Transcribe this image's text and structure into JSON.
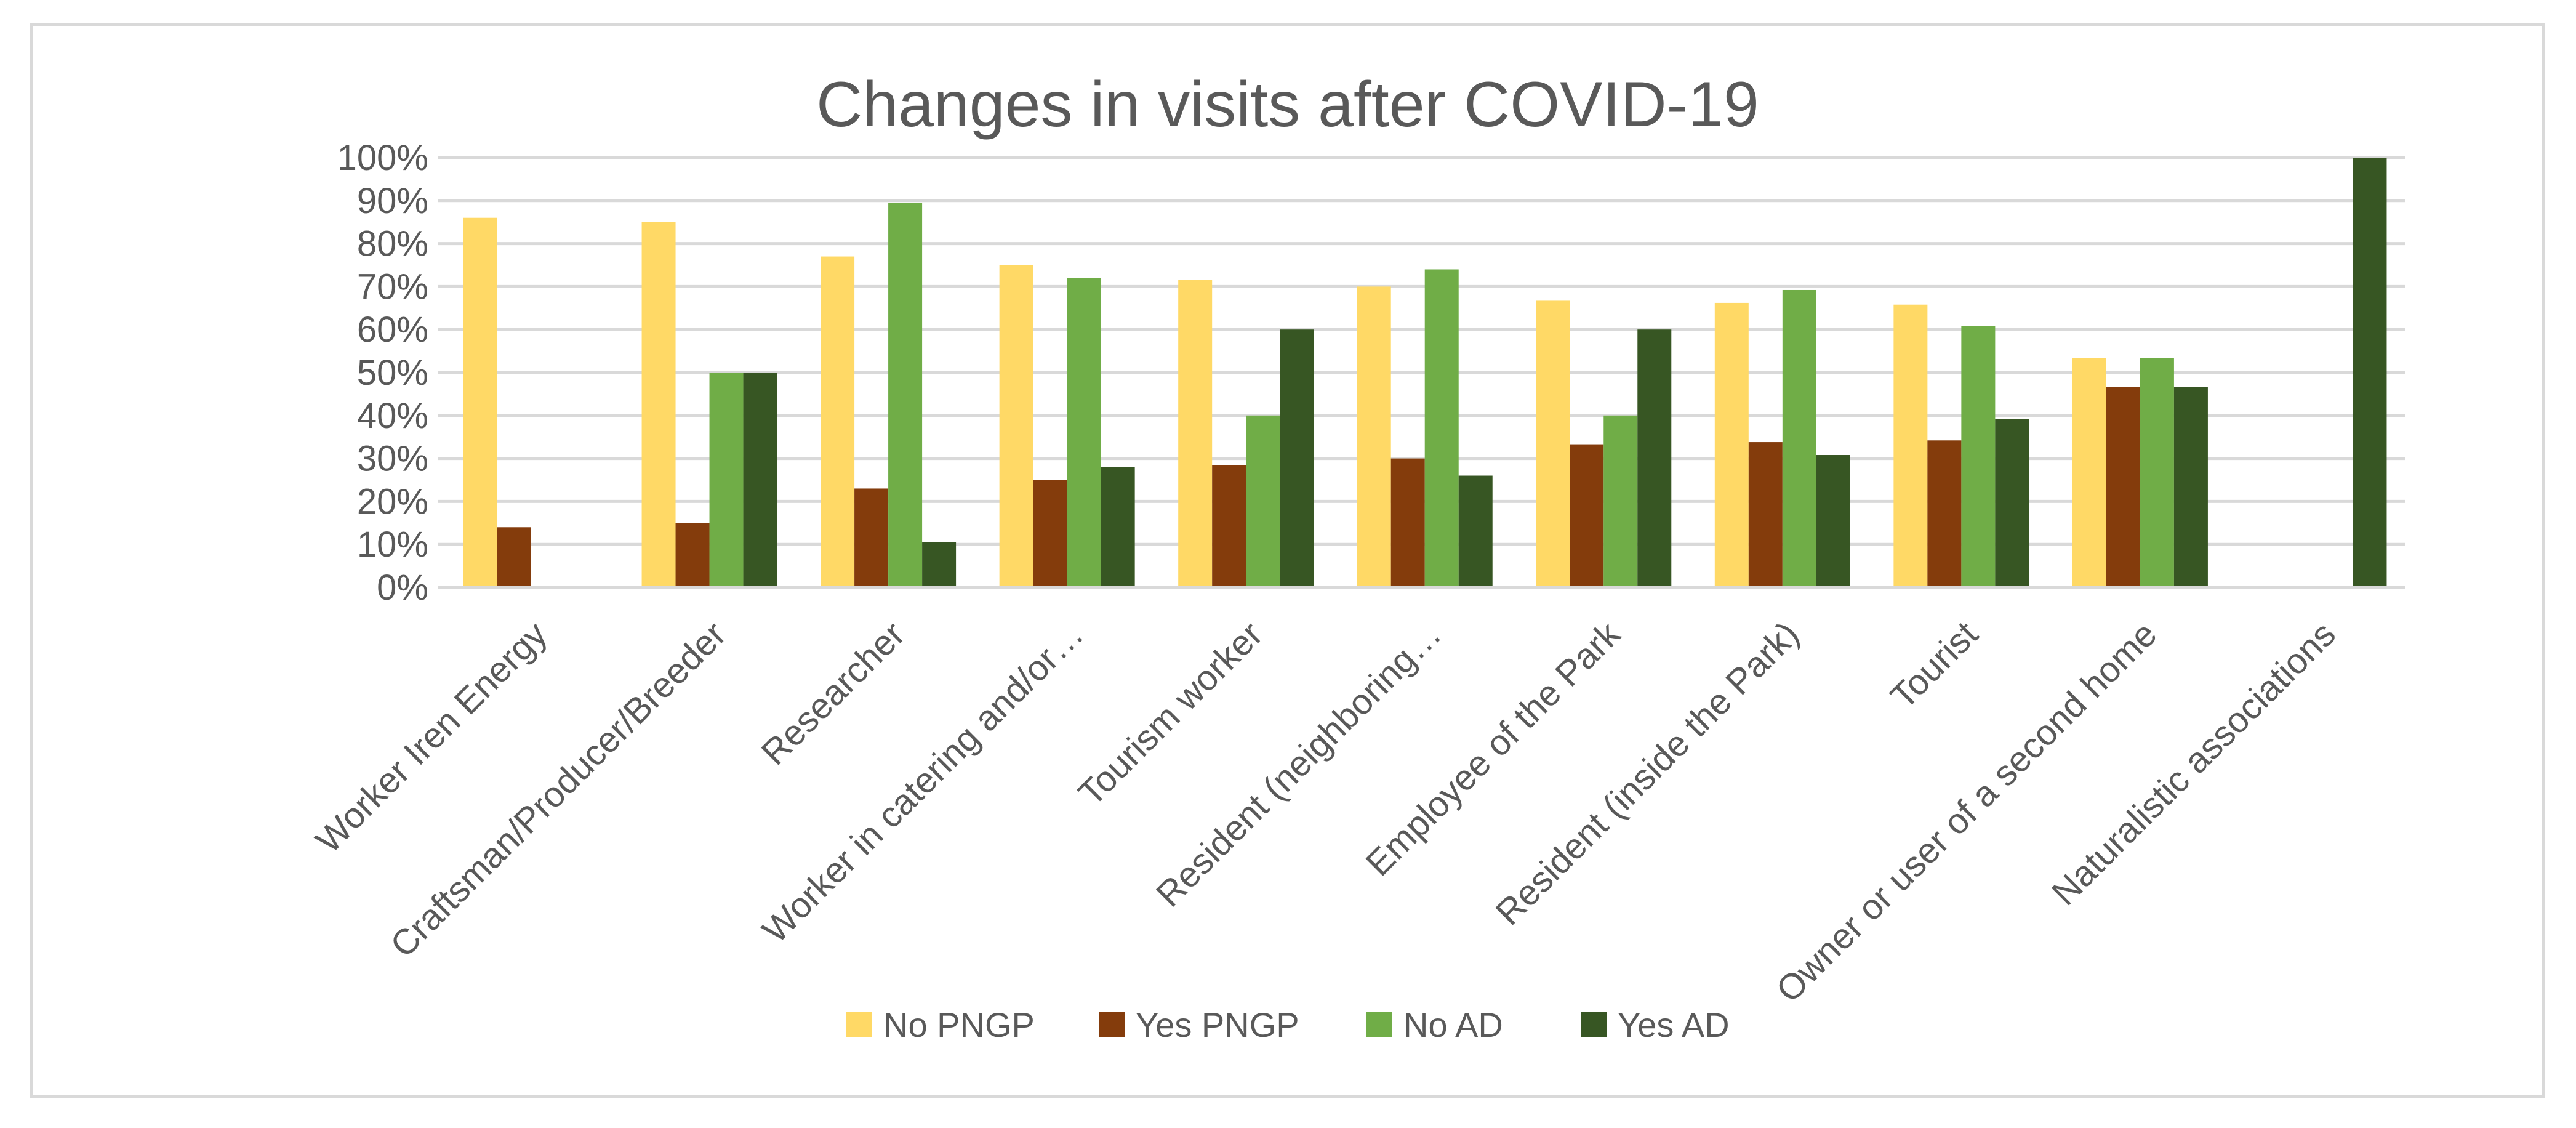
{
  "chart_data": {
    "type": "bar",
    "title": "Changes in visits after COVID-19",
    "xlabel": "",
    "ylabel": "",
    "ylim": [
      0,
      100
    ],
    "yticks": [
      "0%",
      "10%",
      "20%",
      "30%",
      "40%",
      "50%",
      "60%",
      "70%",
      "80%",
      "90%",
      "100%"
    ],
    "grid": true,
    "legend_position": "bottom",
    "categories": [
      "Worker Iren Energy",
      "Craftsman/Producer/Breeder",
      "Researcher",
      "Worker in catering and/or…",
      "Tourism worker",
      "Resident (neighboring…",
      "Employee of the Park",
      "Resident (inside the Park)",
      "Tourist",
      "Owner or user of a second home",
      "Naturalistic associations"
    ],
    "series": [
      {
        "name": "No PNGP",
        "color": "#ffd966",
        "values": [
          86,
          85,
          77,
          75,
          71.5,
          70,
          66.7,
          66.2,
          65.8,
          53.3,
          0
        ]
      },
      {
        "name": "Yes PNGP",
        "color": "#843c0c",
        "values": [
          14,
          15,
          23,
          25,
          28.5,
          30,
          33.3,
          33.8,
          34.2,
          46.7,
          0
        ]
      },
      {
        "name": "No  AD",
        "color": "#70ad47",
        "values": [
          0,
          50,
          89.5,
          72,
          40,
          74,
          40,
          69.2,
          60.8,
          53.3,
          0
        ]
      },
      {
        "name": "Yes AD",
        "color": "#375623",
        "values": [
          0,
          50,
          10.5,
          28,
          60,
          26,
          60,
          30.8,
          39.2,
          46.7,
          100
        ]
      }
    ]
  }
}
